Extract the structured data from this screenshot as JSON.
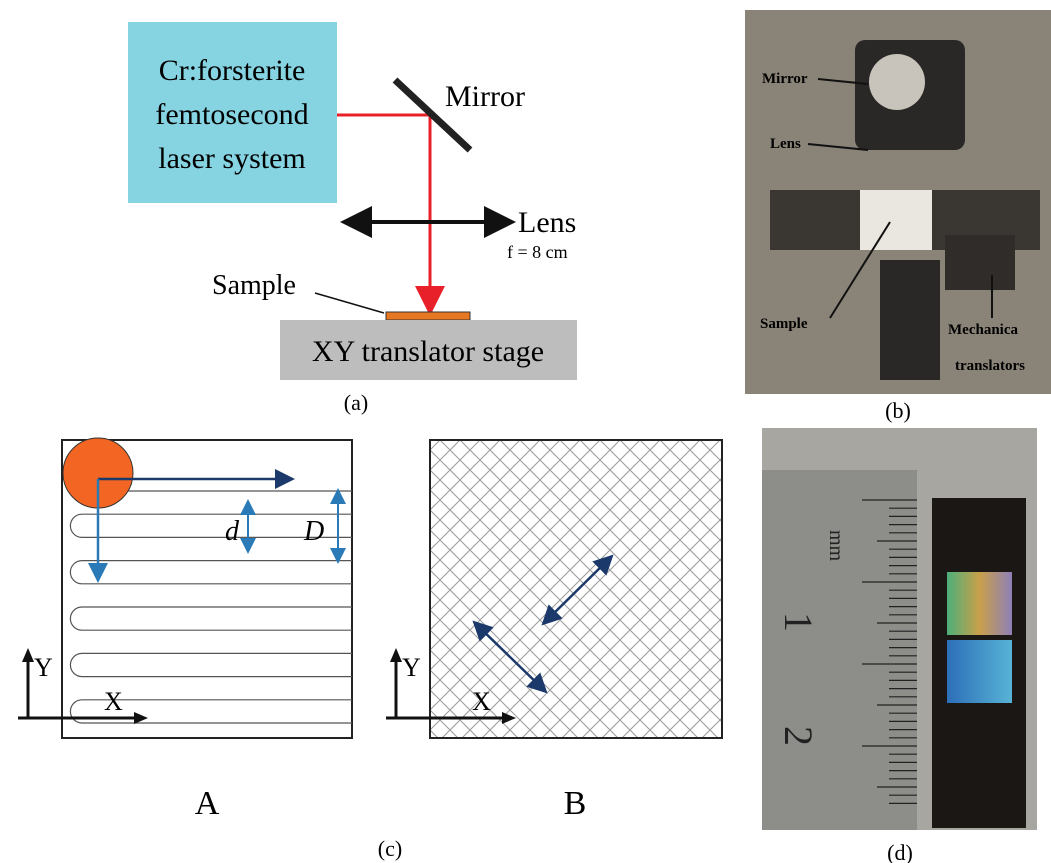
{
  "panels": {
    "a": {
      "laser_lines": [
        "Cr:forsterite",
        "femtosecond",
        "laser system"
      ],
      "mirror": "Mirror",
      "lens": "Lens",
      "focal": "f = 8 cm",
      "sample": "Sample",
      "stage": "XY translator stage",
      "caption": "(a)"
    },
    "b": {
      "mirror": "Mirror",
      "lens": "Lens",
      "sample": "Sample",
      "translators": [
        "Mechanica",
        "translators"
      ],
      "caption": "(b)"
    },
    "c": {
      "A": {
        "d": "d",
        "D": "D",
        "y_axis": "Y",
        "x_axis": "X",
        "label": "A"
      },
      "B": {
        "y_axis": "Y",
        "x_axis": "X",
        "label": "B"
      },
      "caption": "(c)"
    },
    "d": {
      "ruler_unit": "mm",
      "ruler_marks": [
        "1",
        "2"
      ],
      "caption": "(d)"
    }
  }
}
